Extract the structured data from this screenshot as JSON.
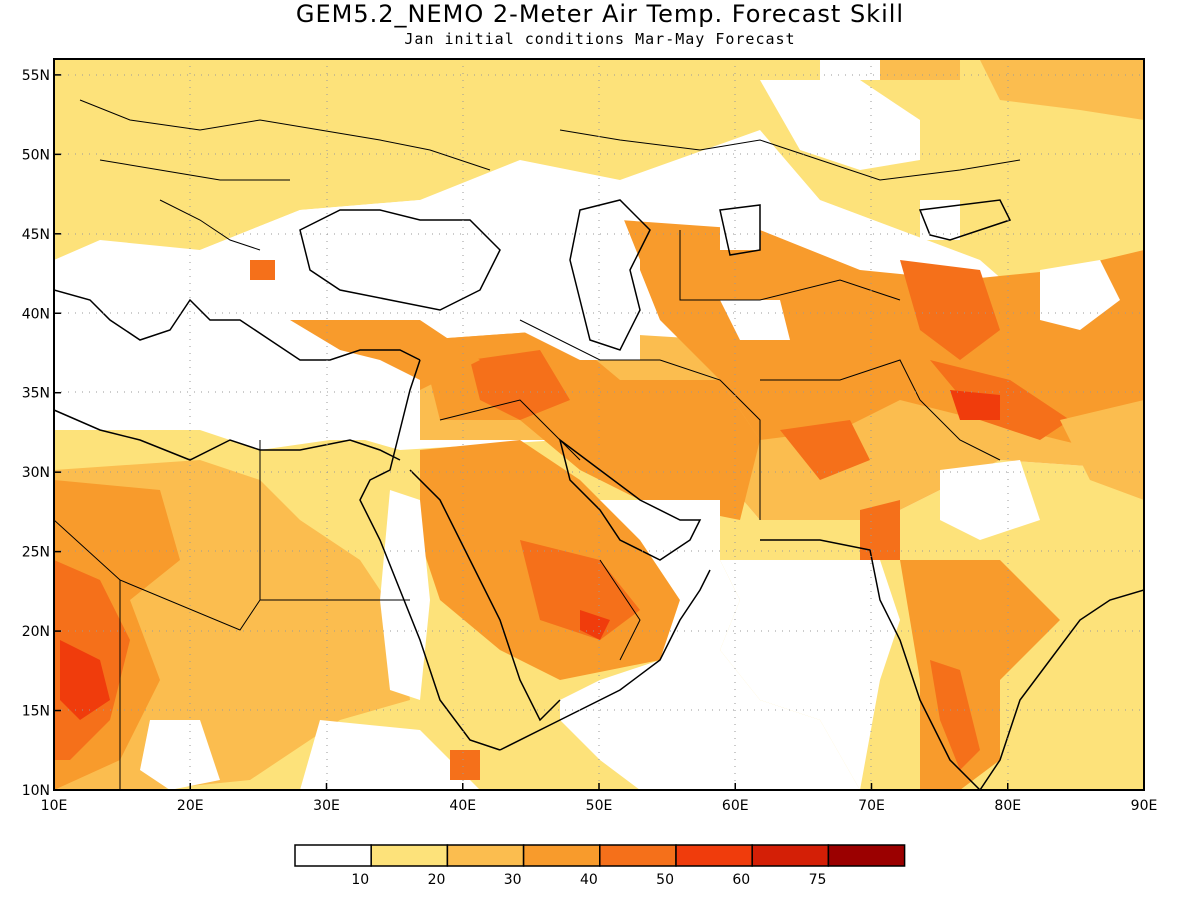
{
  "header": {
    "title": "GEM5.2_NEMO 2-Meter Air Temp. Forecast Skill",
    "subtitle": "Jan initial conditions   Mar-May Forecast"
  },
  "axes": {
    "lon_ticks": [
      "10E",
      "20E",
      "30E",
      "40E",
      "50E",
      "60E",
      "70E",
      "80E",
      "90E"
    ],
    "lat_ticks": [
      "10N",
      "15N",
      "20N",
      "25N",
      "30N",
      "35N",
      "40N",
      "45N",
      "50N",
      "55N"
    ],
    "lon_range": [
      10,
      90
    ],
    "lat_range": [
      10,
      56
    ],
    "grid": true
  },
  "colorbar": {
    "labels": [
      "10",
      "20",
      "30",
      "40",
      "50",
      "60",
      "75"
    ],
    "colors": [
      "#ffffff",
      "#fde27a",
      "#fbbd4f",
      "#f89b2c",
      "#f5701a",
      "#f03c0c",
      "#d41f06",
      "#9b0000"
    ]
  },
  "map": {
    "region": "Middle East / South Asia / North-East Africa",
    "coastline_color": "#000000"
  }
}
